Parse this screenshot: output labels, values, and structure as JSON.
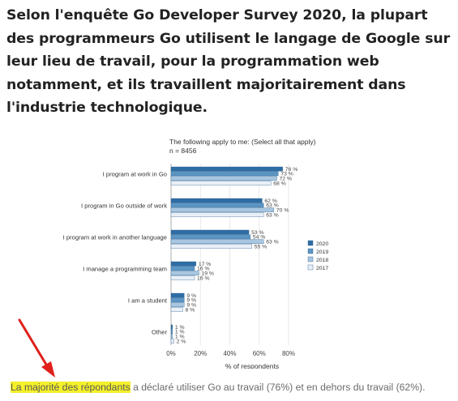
{
  "article": {
    "headline": "Selon l'enquête Go Developer Survey 2020, la plupart des programmeurs Go utilisent le langage de Google sur leur lieu de travail, pour la programmation web notamment, et ils travaillent majoritairement dans l'industrie technologique.",
    "caption_highlight": "La majorité des répondants",
    "caption_rest": " a déclaré utiliser Go au travail (76%) et en dehors du travail (62%)."
  },
  "colors": {
    "highlight": "#f4f02a",
    "arrow": "#e0201b",
    "series": [
      "#2e6da4",
      "#5b95c4",
      "#a9c6e0",
      "#e8eff7"
    ]
  },
  "chart_data": {
    "type": "bar",
    "orientation": "horizontal",
    "title": "The following apply to me: (Select all that apply)",
    "subtitle": "n = 8456",
    "xlabel": "% of respondents",
    "ylabel": "",
    "xlim": [
      0,
      80
    ],
    "x_ticks": [
      "0%",
      "20%",
      "40%",
      "60%",
      "80%"
    ],
    "grid": true,
    "legend_position": "right",
    "categories": [
      "I program at work in Go",
      "I program in Go outside of work",
      "I program at work in another language",
      "I manage a programming team",
      "I am a student",
      "Other"
    ],
    "series": [
      {
        "name": "2020",
        "values": [
          76,
          62,
          53,
          17,
          9,
          1
        ]
      },
      {
        "name": "2019",
        "values": [
          73,
          63,
          54,
          16,
          9,
          1
        ]
      },
      {
        "name": "2018",
        "values": [
          72,
          70,
          63,
          19,
          9,
          1
        ]
      },
      {
        "name": "2017",
        "values": [
          68,
          63,
          55,
          16,
          8,
          2
        ]
      }
    ]
  }
}
